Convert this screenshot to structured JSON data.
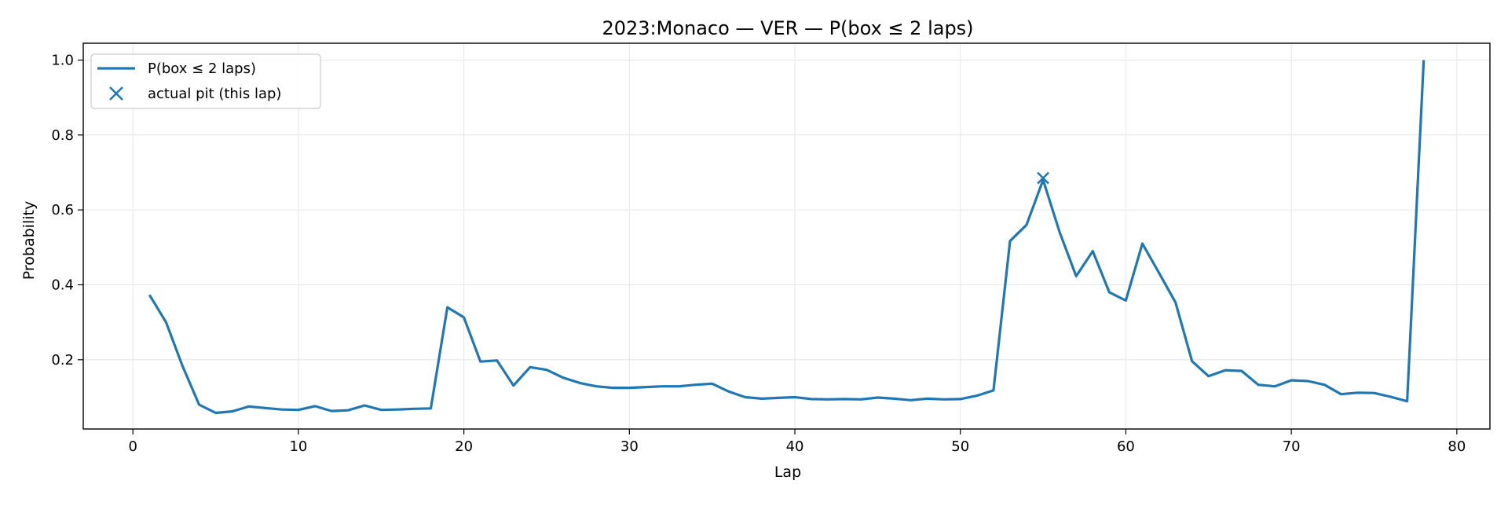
{
  "chart_data": {
    "type": "line",
    "title": "2023:Monaco — VER — P(box ≤ 2 laps)",
    "xlabel": "Lap",
    "ylabel": "Probability",
    "xlim": [
      -3,
      82
    ],
    "ylim": [
      0.015,
      1.045
    ],
    "x_ticks": [
      0,
      10,
      20,
      30,
      40,
      50,
      60,
      70,
      80
    ],
    "y_ticks": [
      0.2,
      0.4,
      0.6,
      0.8,
      1.0
    ],
    "grid": true,
    "legend_position": "top-left",
    "color": "#1f77b4",
    "series": [
      {
        "name": "P(box ≤ 2 laps)",
        "x": [
          1,
          2,
          3,
          4,
          5,
          6,
          7,
          8,
          9,
          10,
          11,
          12,
          13,
          14,
          15,
          16,
          17,
          18,
          19,
          20,
          21,
          22,
          23,
          24,
          25,
          26,
          27,
          28,
          29,
          30,
          31,
          32,
          33,
          34,
          35,
          36,
          37,
          38,
          39,
          40,
          41,
          42,
          43,
          44,
          45,
          46,
          47,
          48,
          49,
          50,
          51,
          52,
          53,
          54,
          55,
          56,
          57,
          58,
          59,
          60,
          61,
          62,
          63,
          64,
          65,
          66,
          67,
          68,
          69,
          70,
          71,
          72,
          73,
          74,
          75,
          76,
          77,
          78
        ],
        "y": [
          0.373,
          0.3,
          0.183,
          0.08,
          0.058,
          0.062,
          0.075,
          0.071,
          0.067,
          0.066,
          0.076,
          0.063,
          0.065,
          0.078,
          0.066,
          0.067,
          0.069,
          0.07,
          0.34,
          0.313,
          0.195,
          0.198,
          0.131,
          0.18,
          0.173,
          0.152,
          0.138,
          0.129,
          0.125,
          0.125,
          0.127,
          0.129,
          0.129,
          0.133,
          0.136,
          0.115,
          0.1,
          0.096,
          0.098,
          0.1,
          0.095,
          0.094,
          0.095,
          0.094,
          0.099,
          0.096,
          0.092,
          0.096,
          0.094,
          0.095,
          0.104,
          0.118,
          0.517,
          0.56,
          0.68,
          0.54,
          0.423,
          0.49,
          0.38,
          0.358,
          0.51,
          0.432,
          0.353,
          0.196,
          0.156,
          0.172,
          0.17,
          0.133,
          0.129,
          0.145,
          0.143,
          0.133,
          0.108,
          0.112,
          0.111,
          0.101,
          0.089,
          1.0
        ]
      }
    ],
    "markers": [
      {
        "name": "actual pit (this lap)",
        "symbol": "x",
        "points": [
          {
            "x": 55,
            "y": 0.685
          }
        ]
      }
    ],
    "legend": {
      "items": [
        {
          "label": "P(box ≤ 2 laps)",
          "kind": "line"
        },
        {
          "label": "actual pit (this lap)",
          "kind": "x-marker"
        }
      ]
    }
  }
}
